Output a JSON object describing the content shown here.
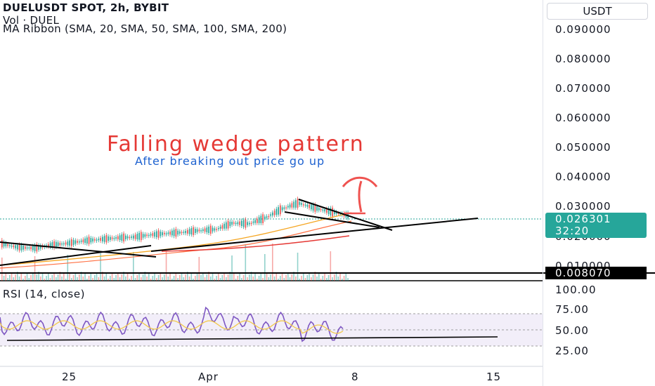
{
  "header": {
    "symbol_line": "DUELUSDT SPOT, 2h, BYBIT",
    "volume_line": "Vol · DUEL",
    "ma_line": "MA Ribbon (SMA, 20, SMA, 50, SMA, 100, SMA, 200)"
  },
  "annotations": {
    "title": "Falling wedge pattern",
    "subtitle": "After breaking out price go up"
  },
  "price_scale": {
    "currency": "USDT",
    "ticks": [
      "0.090000",
      "0.080000",
      "0.070000",
      "0.060000",
      "0.050000",
      "0.040000",
      "0.030000",
      "0.020000",
      "0.010000"
    ],
    "current_price": "0.026301",
    "countdown": "32:20",
    "line_price": "0.008070"
  },
  "rsi": {
    "label": "RSI (14, close)",
    "ticks": [
      "100.00",
      "75.00",
      "50.00",
      "25.00"
    ]
  },
  "time_axis": {
    "ticks": [
      "25",
      "Apr",
      "8",
      "15"
    ]
  },
  "colors": {
    "up": "#26a69a",
    "down": "#ef5350",
    "rsi_line": "#7e57c2",
    "rsi_ma": "#f2c94c",
    "rsi_band": "#ede7f6",
    "title": "#e53935",
    "subtitle": "#1e62d0"
  },
  "chart_data": {
    "type": "candlestick",
    "ylim": [
      0.0,
      0.095
    ],
    "price_trend": [
      [
        0.0175,
        0.018
      ],
      [
        0.0165,
        0.0165
      ],
      [
        0.016,
        0.0165
      ],
      [
        0.0172,
        0.0175
      ],
      [
        0.0178,
        0.018
      ],
      [
        0.0185,
        0.019
      ],
      [
        0.019,
        0.0195
      ],
      [
        0.0195,
        0.02
      ],
      [
        0.0195,
        0.0205
      ],
      [
        0.0205,
        0.021
      ],
      [
        0.021,
        0.0215
      ],
      [
        0.0212,
        0.022
      ],
      [
        0.022,
        0.0225
      ],
      [
        0.0222,
        0.023
      ],
      [
        0.0245,
        0.025
      ],
      [
        0.024,
        0.025
      ],
      [
        0.026,
        0.027
      ],
      [
        0.029,
        0.03
      ],
      [
        0.031,
        0.032
      ],
      [
        0.0295,
        0.03
      ],
      [
        0.028,
        0.029
      ],
      [
        0.027,
        0.0275
      ]
    ],
    "rsi_ylim": [
      0,
      100
    ]
  }
}
